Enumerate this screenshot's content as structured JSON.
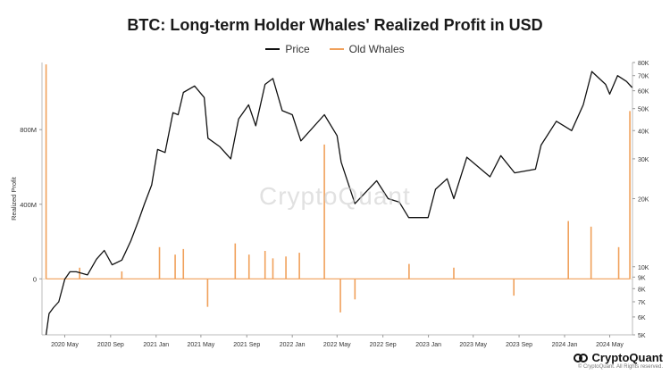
{
  "page": {
    "watermark": "CryptoQuant",
    "brand": "CryptoQuant",
    "copyright": "© CryptoQuant. All Rights reserved."
  },
  "chart_data": {
    "type": "line",
    "title": "BTC: Long-term Holder Whales' Realized Profit in USD",
    "xlabel": "",
    "ylabel": "Realized Profit",
    "y2label": "",
    "legend": [
      "Price",
      "Old Whales"
    ],
    "legend_position": "top",
    "grid": false,
    "y_ticks": [
      "0",
      "400M",
      "800M"
    ],
    "y2_ticks": [
      "5K",
      "6K",
      "7K",
      "8K",
      "9K",
      "10K",
      "20K",
      "30K",
      "40K",
      "50K",
      "60K",
      "70K",
      "80K"
    ],
    "y2_scale": "log",
    "x_ticks": [
      "2020 May",
      "2020 Sep",
      "2021 Jan",
      "2021 May",
      "2021 Sep",
      "2022 Jan",
      "2022 May",
      "2022 Sep",
      "2023 Jan",
      "2023 May",
      "2023 Sep",
      "2024 Jan",
      "2024 May"
    ],
    "x_range": [
      "2020-03",
      "2024-07"
    ],
    "ylim": [
      -300000000,
      1160000000
    ],
    "y2lim": [
      5000,
      80000
    ],
    "colors": {
      "price": "#111111",
      "old_whales": "#f0a05a"
    },
    "series": [
      {
        "name": "Price",
        "axis": "right",
        "points": [
          [
            "2020-03-12",
            5000
          ],
          [
            "2020-03-20",
            6200
          ],
          [
            "2020-04-01",
            6600
          ],
          [
            "2020-04-15",
            7000
          ],
          [
            "2020-05-01",
            8800
          ],
          [
            "2020-05-15",
            9500
          ],
          [
            "2020-06-01",
            9500
          ],
          [
            "2020-07-01",
            9200
          ],
          [
            "2020-07-25",
            10800
          ],
          [
            "2020-08-15",
            11800
          ],
          [
            "2020-09-05",
            10200
          ],
          [
            "2020-10-01",
            10700
          ],
          [
            "2020-10-25",
            13000
          ],
          [
            "2020-11-15",
            16000
          ],
          [
            "2020-12-01",
            19000
          ],
          [
            "2020-12-20",
            23000
          ],
          [
            "2021-01-05",
            33000
          ],
          [
            "2021-01-25",
            32000
          ],
          [
            "2021-02-15",
            48000
          ],
          [
            "2021-03-01",
            47000
          ],
          [
            "2021-03-15",
            59000
          ],
          [
            "2021-04-14",
            63000
          ],
          [
            "2021-05-10",
            56000
          ],
          [
            "2021-05-20",
            37000
          ],
          [
            "2021-06-20",
            34000
          ],
          [
            "2021-07-20",
            30000
          ],
          [
            "2021-08-10",
            45000
          ],
          [
            "2021-09-06",
            52000
          ],
          [
            "2021-09-25",
            42000
          ],
          [
            "2021-10-20",
            64000
          ],
          [
            "2021-11-10",
            68000
          ],
          [
            "2021-12-05",
            49000
          ],
          [
            "2022-01-01",
            47000
          ],
          [
            "2022-01-24",
            36000
          ],
          [
            "2022-03-28",
            47000
          ],
          [
            "2022-05-01",
            38000
          ],
          [
            "2022-05-12",
            29000
          ],
          [
            "2022-06-18",
            19000
          ],
          [
            "2022-08-15",
            24000
          ],
          [
            "2022-09-15",
            20000
          ],
          [
            "2022-10-15",
            19300
          ],
          [
            "2022-11-09",
            16500
          ],
          [
            "2022-12-31",
            16500
          ],
          [
            "2023-01-20",
            22000
          ],
          [
            "2023-02-20",
            24500
          ],
          [
            "2023-03-10",
            20000
          ],
          [
            "2023-04-14",
            30500
          ],
          [
            "2023-06-15",
            25000
          ],
          [
            "2023-07-14",
            31000
          ],
          [
            "2023-08-20",
            26000
          ],
          [
            "2023-10-15",
            27000
          ],
          [
            "2023-10-30",
            34500
          ],
          [
            "2023-12-10",
            44000
          ],
          [
            "2024-01-20",
            40000
          ],
          [
            "2024-02-20",
            52000
          ],
          [
            "2024-03-14",
            73000
          ],
          [
            "2024-04-20",
            64000
          ],
          [
            "2024-05-01",
            58000
          ],
          [
            "2024-05-22",
            70000
          ],
          [
            "2024-06-15",
            66000
          ],
          [
            "2024-06-30",
            62000
          ]
        ]
      },
      {
        "name": "Old Whales",
        "axis": "left",
        "points": [
          [
            "2020-03-12",
            1150000000
          ],
          [
            "2020-06-10",
            60000000
          ],
          [
            "2020-10-01",
            40000000
          ],
          [
            "2021-01-10",
            170000000
          ],
          [
            "2021-02-21",
            130000000
          ],
          [
            "2021-03-15",
            160000000
          ],
          [
            "2021-05-19",
            -150000000
          ],
          [
            "2021-08-01",
            190000000
          ],
          [
            "2021-09-07",
            130000000
          ],
          [
            "2021-10-20",
            150000000
          ],
          [
            "2021-11-10",
            110000000
          ],
          [
            "2021-12-15",
            120000000
          ],
          [
            "2022-01-20",
            140000000
          ],
          [
            "2022-03-28",
            720000000
          ],
          [
            "2022-05-10",
            -180000000
          ],
          [
            "2022-06-18",
            -110000000
          ],
          [
            "2022-11-10",
            80000000
          ],
          [
            "2023-03-10",
            60000000
          ],
          [
            "2023-08-18",
            -90000000
          ],
          [
            "2024-01-11",
            310000000
          ],
          [
            "2024-03-12",
            280000000
          ],
          [
            "2024-05-25",
            170000000
          ],
          [
            "2024-06-24",
            900000000
          ]
        ]
      }
    ]
  }
}
